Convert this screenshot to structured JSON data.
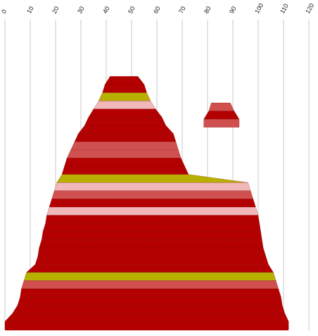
{
  "chart_data": {
    "type": "area",
    "title": "",
    "xlabel": "",
    "ylabel": "",
    "xlim": [
      0,
      120
    ],
    "x_ticks": [
      0,
      10,
      20,
      30,
      40,
      50,
      60,
      70,
      80,
      90,
      100,
      110,
      120
    ],
    "tick_labels": [
      "0",
      "10",
      "20",
      "30",
      "40",
      "50",
      "60",
      "70",
      "80",
      "90",
      "100",
      "110",
      "120"
    ],
    "grid": "vertical",
    "legend": "none",
    "colors": {
      "dark_red": "#b30000",
      "medium_red": "#d05050",
      "pink": "#f0b8b8",
      "olive": "#b8b000"
    },
    "bands": [
      {
        "left": 0,
        "right": 2,
        "color": "dark_red"
      },
      {
        "left": 0,
        "right": 2,
        "color": "dark_red"
      },
      {
        "left": 0,
        "right": 2,
        "color": "dark_red"
      },
      {
        "left": 0,
        "right": 2,
        "color": "dark_red"
      },
      {
        "left": 0,
        "right": 2,
        "color": "dark_red"
      },
      {
        "left": 0,
        "right": 2,
        "color": "dark_red"
      },
      {
        "left": 0,
        "right": 2,
        "color": "dark_red"
      },
      {
        "left": 41.5,
        "right": 52.5,
        "color": "dark_red"
      },
      {
        "left": 39.5,
        "right": 55,
        "color": "dark_red"
      },
      {
        "left": 38.5,
        "right": 56,
        "color": "olive"
      },
      {
        "left": 37,
        "right": 57.5,
        "color": "pink"
      },
      {
        "left": 35,
        "right": 59.5,
        "color": "dark_red"
      },
      {
        "left": 33,
        "right": 62,
        "color": "dark_red"
      },
      {
        "left": 31.5,
        "right": 63.5,
        "color": "dark_red"
      },
      {
        "left": 29,
        "right": 66.5,
        "color": "dark_red"
      },
      {
        "left": 27.5,
        "right": 67.5,
        "color": "medium_red"
      },
      {
        "left": 26,
        "right": 68.5,
        "color": "medium_red"
      },
      {
        "left": 24.5,
        "right": 69.5,
        "color": "dark_red"
      },
      {
        "left": 23.5,
        "right": 71,
        "color": "dark_red"
      },
      {
        "left": 22.5,
        "right": 72.5,
        "color": "olive"
      },
      {
        "left": 20.5,
        "right": 96,
        "color": "pink"
      },
      {
        "left": 19.5,
        "right": 97,
        "color": "medium_red"
      },
      {
        "left": 18.5,
        "right": 98,
        "color": "dark_red"
      },
      {
        "left": 17.5,
        "right": 99,
        "color": "pink"
      },
      {
        "left": 16.5,
        "right": 100,
        "color": "dark_red"
      },
      {
        "left": 16,
        "right": 100.5,
        "color": "dark_red"
      },
      {
        "left": 15,
        "right": 101,
        "color": "dark_red"
      },
      {
        "left": 14.5,
        "right": 101.5,
        "color": "dark_red"
      },
      {
        "left": 13.5,
        "right": 102,
        "color": "dark_red"
      },
      {
        "left": 13,
        "right": 103,
        "color": "dark_red"
      },
      {
        "left": 12,
        "right": 104,
        "color": "dark_red"
      },
      {
        "left": 8.5,
        "right": 106,
        "color": "olive"
      },
      {
        "left": 7.5,
        "right": 107,
        "color": "medium_red"
      },
      {
        "left": 6.5,
        "right": 108,
        "color": "dark_red"
      },
      {
        "left": 6,
        "right": 109,
        "color": "dark_red"
      },
      {
        "left": 5,
        "right": 109.5,
        "color": "dark_red"
      },
      {
        "left": 3,
        "right": 110.5,
        "color": "dark_red"
      },
      {
        "left": 0,
        "right": 112,
        "color": "dark_red"
      }
    ],
    "secondary_peak": {
      "bands": [
        {
          "left": 81.5,
          "right": 89,
          "color": "medium_red"
        },
        {
          "left": 80.5,
          "right": 90.5,
          "color": "dark_red"
        },
        {
          "left": 78.5,
          "right": 92.5,
          "color": "medium_red"
        }
      ]
    }
  }
}
